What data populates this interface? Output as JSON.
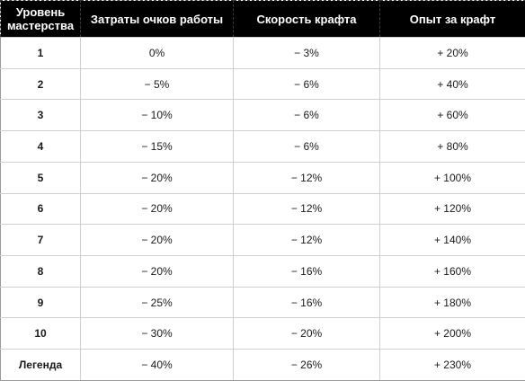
{
  "table": {
    "headers": {
      "level_line1": "Уровень",
      "level_line2": "мастерства",
      "work_cost": "Затраты очков работы",
      "craft_speed": "Скорость крафта",
      "craft_xp": "Опыт за крафт"
    },
    "rows": [
      {
        "level": "1",
        "work_cost": "0%",
        "craft_speed": "− 3%",
        "craft_xp": "+ 20%"
      },
      {
        "level": "2",
        "work_cost": "− 5%",
        "craft_speed": "− 6%",
        "craft_xp": "+ 40%"
      },
      {
        "level": "3",
        "work_cost": "− 10%",
        "craft_speed": "− 6%",
        "craft_xp": "+ 60%"
      },
      {
        "level": "4",
        "work_cost": "− 15%",
        "craft_speed": "− 6%",
        "craft_xp": "+ 80%"
      },
      {
        "level": "5",
        "work_cost": "− 20%",
        "craft_speed": "− 12%",
        "craft_xp": "+ 100%"
      },
      {
        "level": "6",
        "work_cost": "− 20%",
        "craft_speed": "− 12%",
        "craft_xp": "+ 120%"
      },
      {
        "level": "7",
        "work_cost": "− 20%",
        "craft_speed": "− 12%",
        "craft_xp": "+ 140%"
      },
      {
        "level": "8",
        "work_cost": "− 20%",
        "craft_speed": "− 16%",
        "craft_xp": "+ 160%"
      },
      {
        "level": "9",
        "work_cost": "− 25%",
        "craft_speed": "− 16%",
        "craft_xp": "+ 180%"
      },
      {
        "level": "10",
        "work_cost": "− 30%",
        "craft_speed": "− 20%",
        "craft_xp": "+ 200%"
      },
      {
        "level": "Легенда",
        "work_cost": "− 40%",
        "craft_speed": "− 26%",
        "craft_xp": "+ 230%"
      }
    ]
  }
}
